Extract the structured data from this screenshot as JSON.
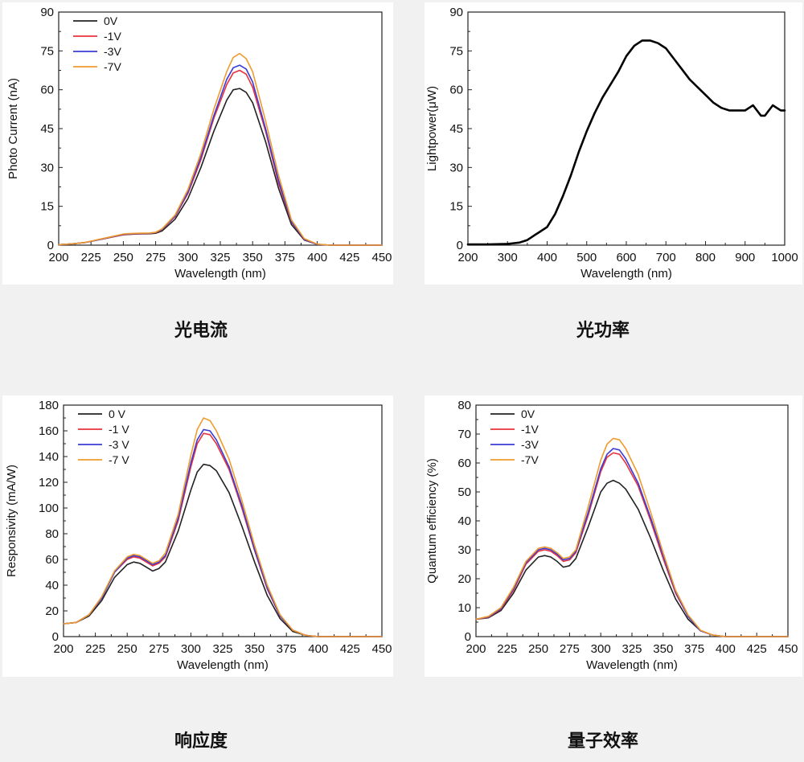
{
  "colors": {
    "0V": "#222222",
    "-1V": "#e8323c",
    "-3V": "#3b3bd6",
    "-7V": "#ef9b2e",
    "single": "#000000"
  },
  "captions": [
    "光电流",
    "光功率",
    "响应度",
    "量子效率"
  ],
  "chart_data": [
    {
      "type": "line",
      "caption": "光电流",
      "xlabel": "Wavelength (nm)",
      "ylabel": "Photo Current (nA)",
      "xlim": [
        200,
        450
      ],
      "ylim": [
        0,
        90
      ],
      "xticks": [
        "200",
        "225",
        "250",
        "275",
        "300",
        "325",
        "350",
        "375",
        "400",
        "425",
        "450"
      ],
      "yticks": [
        "0",
        "15",
        "30",
        "45",
        "60",
        "75",
        "90"
      ],
      "legend": "top-left",
      "grid": false,
      "x": [
        200,
        210,
        220,
        230,
        240,
        250,
        260,
        270,
        275,
        280,
        290,
        300,
        310,
        320,
        330,
        335,
        340,
        345,
        350,
        360,
        370,
        380,
        390,
        400,
        410,
        420,
        430,
        440,
        450
      ],
      "series": [
        {
          "name": "0V",
          "values": [
            0.2,
            0.5,
            1,
            2,
            3,
            4,
            4.3,
            4.4,
            4.6,
            5.5,
            10,
            18,
            30,
            44,
            56,
            60,
            60.5,
            59,
            55,
            40,
            22,
            8,
            2,
            0.3,
            0,
            0,
            0,
            0,
            0
          ]
        },
        {
          "name": "-1V",
          "values": [
            0.2,
            0.5,
            1,
            2,
            3,
            4.1,
            4.4,
            4.5,
            4.8,
            6,
            11,
            20,
            33,
            49,
            62,
            66.5,
            67.5,
            66,
            61,
            44,
            24,
            9,
            2.2,
            0.3,
            0,
            0,
            0,
            0,
            0
          ]
        },
        {
          "name": "-3V",
          "values": [
            0.2,
            0.5,
            1,
            2,
            3.1,
            4.2,
            4.5,
            4.6,
            4.9,
            6.1,
            11.2,
            20.5,
            34,
            50,
            64,
            68.5,
            69.5,
            68,
            63,
            45,
            25,
            9.2,
            2.3,
            0.3,
            0,
            0,
            0,
            0,
            0
          ]
        },
        {
          "name": "-7V",
          "values": [
            0.2,
            0.5,
            1,
            2.1,
            3.2,
            4.3,
            4.6,
            4.7,
            5,
            6.3,
            11.6,
            21.5,
            35.5,
            52.5,
            67,
            72.5,
            74,
            72,
            67,
            48,
            27,
            9.8,
            2.5,
            0.4,
            0,
            0,
            0,
            0,
            0
          ]
        }
      ]
    },
    {
      "type": "line",
      "caption": "光功率",
      "xlabel": "Wavelength (nm)",
      "ylabel": "Lightpower(μW)",
      "xlim": [
        200,
        1000
      ],
      "ylim": [
        0,
        90
      ],
      "xticks": [
        "200",
        "300",
        "400",
        "500",
        "600",
        "700",
        "800",
        "900",
        "1000"
      ],
      "yticks": [
        "0",
        "15",
        "30",
        "45",
        "60",
        "75",
        "90"
      ],
      "legend": "none",
      "grid": false,
      "x": [
        200,
        250,
        300,
        330,
        350,
        370,
        380,
        400,
        420,
        440,
        460,
        480,
        500,
        520,
        540,
        560,
        580,
        600,
        620,
        640,
        660,
        680,
        700,
        720,
        740,
        760,
        780,
        800,
        820,
        840,
        860,
        880,
        900,
        910,
        920,
        930,
        940,
        950,
        960,
        970,
        980,
        990,
        1000
      ],
      "series": [
        {
          "values": [
            0.3,
            0.3,
            0.5,
            1,
            2,
            4,
            5,
            7,
            12,
            19,
            27,
            36,
            44,
            51,
            57,
            62,
            67,
            73,
            77,
            79,
            79,
            78,
            76,
            72,
            68,
            64,
            61,
            58,
            55,
            53,
            52,
            52,
            52,
            53,
            54,
            52,
            50,
            50,
            52,
            54,
            53,
            52,
            52
          ]
        }
      ]
    },
    {
      "type": "line",
      "caption": "响应度",
      "xlabel": "Wavelength (nm)",
      "ylabel": "Responsivity (mA/W)",
      "xlim": [
        200,
        450
      ],
      "ylim": [
        0,
        180
      ],
      "xticks": [
        "200",
        "225",
        "250",
        "275",
        "300",
        "325",
        "350",
        "375",
        "400",
        "425",
        "450"
      ],
      "yticks": [
        "0",
        "20",
        "40",
        "60",
        "80",
        "100",
        "120",
        "140",
        "160",
        "180"
      ],
      "legend": "top-left",
      "grid": false,
      "x": [
        200,
        210,
        220,
        230,
        240,
        250,
        255,
        260,
        265,
        270,
        275,
        280,
        290,
        300,
        305,
        310,
        315,
        320,
        330,
        340,
        350,
        360,
        370,
        380,
        390,
        400,
        410,
        420,
        430,
        440,
        450
      ],
      "series": [
        {
          "name": "0 V",
          "values": [
            10,
            11,
            16,
            28,
            46,
            56,
            58,
            57,
            54,
            51,
            53,
            58,
            82,
            114,
            128,
            134,
            133,
            129,
            112,
            86,
            58,
            32,
            14,
            4,
            1,
            0,
            0,
            0,
            0,
            0,
            0
          ]
        },
        {
          "name": "-1 V",
          "values": [
            10,
            11,
            17,
            30,
            50,
            60,
            62,
            61,
            58,
            55,
            57,
            62,
            90,
            132,
            150,
            158,
            157,
            150,
            130,
            100,
            67,
            37,
            16,
            5,
            1,
            0,
            0,
            0,
            0,
            0,
            0
          ]
        },
        {
          "name": "-3 V",
          "values": [
            10,
            11,
            17,
            30,
            50,
            61,
            63,
            62,
            59,
            56,
            58,
            63,
            92,
            135,
            153,
            161,
            160,
            153,
            132,
            102,
            68,
            38,
            16,
            5,
            1,
            0,
            0,
            0,
            0,
            0,
            0
          ]
        },
        {
          "name": "-7 V",
          "values": [
            10,
            11,
            17,
            31,
            51,
            62,
            64,
            63,
            60,
            57,
            59,
            65,
            95,
            141,
            161,
            170,
            168,
            160,
            138,
            106,
            71,
            40,
            17,
            5,
            1,
            0,
            0,
            0,
            0,
            0,
            0
          ]
        }
      ]
    },
    {
      "type": "line",
      "caption": "量子效率",
      "xlabel": "Wavelength (nm)",
      "ylabel": "Quantum efficiency (%)",
      "xlim": [
        200,
        450
      ],
      "ylim": [
        0,
        80
      ],
      "xticks": [
        "200",
        "225",
        "250",
        "275",
        "300",
        "325",
        "350",
        "375",
        "400",
        "425",
        "450"
      ],
      "yticks": [
        "0",
        "10",
        "20",
        "30",
        "40",
        "50",
        "60",
        "70",
        "80"
      ],
      "legend": "top-left",
      "grid": false,
      "x": [
        200,
        210,
        220,
        230,
        240,
        250,
        255,
        260,
        265,
        270,
        275,
        280,
        290,
        300,
        305,
        310,
        315,
        320,
        330,
        340,
        350,
        360,
        370,
        380,
        390,
        400,
        410,
        420,
        430,
        440,
        450
      ],
      "series": [
        {
          "name": "0V",
          "values": [
            6,
            6.5,
            9,
            15,
            23,
            27.5,
            28,
            27.5,
            26,
            24,
            24.5,
            27,
            38,
            50,
            53,
            54,
            53,
            51,
            44,
            34,
            23,
            13,
            6,
            2,
            0.5,
            0,
            0,
            0,
            0,
            0,
            0
          ]
        },
        {
          "name": "-1V",
          "values": [
            6,
            6.7,
            9.5,
            16,
            25,
            29.5,
            30,
            29.5,
            28,
            26,
            26.5,
            29,
            42,
            57,
            62,
            63.5,
            63,
            60,
            52,
            40,
            27,
            15,
            7,
            2,
            0.5,
            0,
            0,
            0,
            0,
            0,
            0
          ]
        },
        {
          "name": "-3V",
          "values": [
            6,
            6.8,
            9.7,
            16.5,
            25.5,
            30,
            30.5,
            30,
            28.5,
            26.5,
            27,
            29.5,
            43,
            58,
            63,
            65,
            64.5,
            61.5,
            53,
            41,
            28,
            15.5,
            7,
            2,
            0.5,
            0,
            0,
            0,
            0,
            0,
            0
          ]
        },
        {
          "name": "-7V",
          "values": [
            6,
            7,
            10,
            17,
            26,
            30.5,
            31,
            30.5,
            29,
            27,
            27.5,
            30,
            45,
            61,
            66.5,
            68.5,
            68,
            65,
            56,
            43,
            29,
            16,
            7.5,
            2.2,
            0.5,
            0,
            0,
            0,
            0,
            0,
            0
          ]
        }
      ]
    }
  ]
}
